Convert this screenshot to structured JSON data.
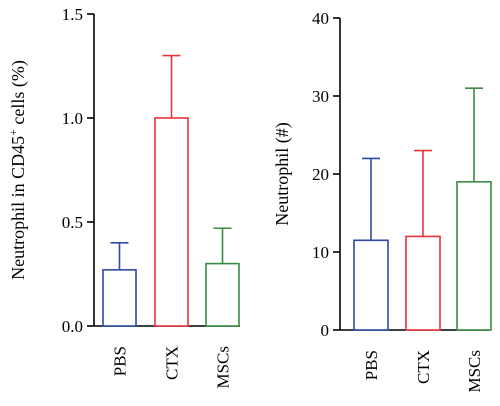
{
  "chart_data": [
    {
      "type": "bar",
      "categories": [
        "PBS",
        "CTX",
        "MSCs"
      ],
      "values": [
        0.27,
        1.0,
        0.3
      ],
      "errors": [
        0.13,
        0.3,
        0.17
      ],
      "colors": [
        "#2e4aa3",
        "#e8333a",
        "#3a8a43"
      ],
      "ylabel_parts": [
        "Neutrophil in CD45",
        "+",
        " cells (%)"
      ],
      "ylim": [
        0,
        1.5
      ],
      "yticks": [
        0,
        0.5,
        1.0,
        1.5
      ],
      "ytick_labels": [
        "0.0",
        "0.5",
        "1.0",
        "1.5"
      ]
    },
    {
      "type": "bar",
      "categories": [
        "PBS",
        "CTX",
        "MSCs"
      ],
      "values": [
        11.5,
        12,
        19
      ],
      "errors": [
        10.5,
        11,
        12
      ],
      "colors": [
        "#2e4aa3",
        "#e8333a",
        "#3a8a43"
      ],
      "ylabel": "Neutrophil (#)",
      "ylim": [
        0,
        40
      ],
      "yticks": [
        0,
        10,
        20,
        30,
        40
      ],
      "ytick_labels": [
        "0",
        "10",
        "20",
        "30",
        "40"
      ]
    }
  ]
}
